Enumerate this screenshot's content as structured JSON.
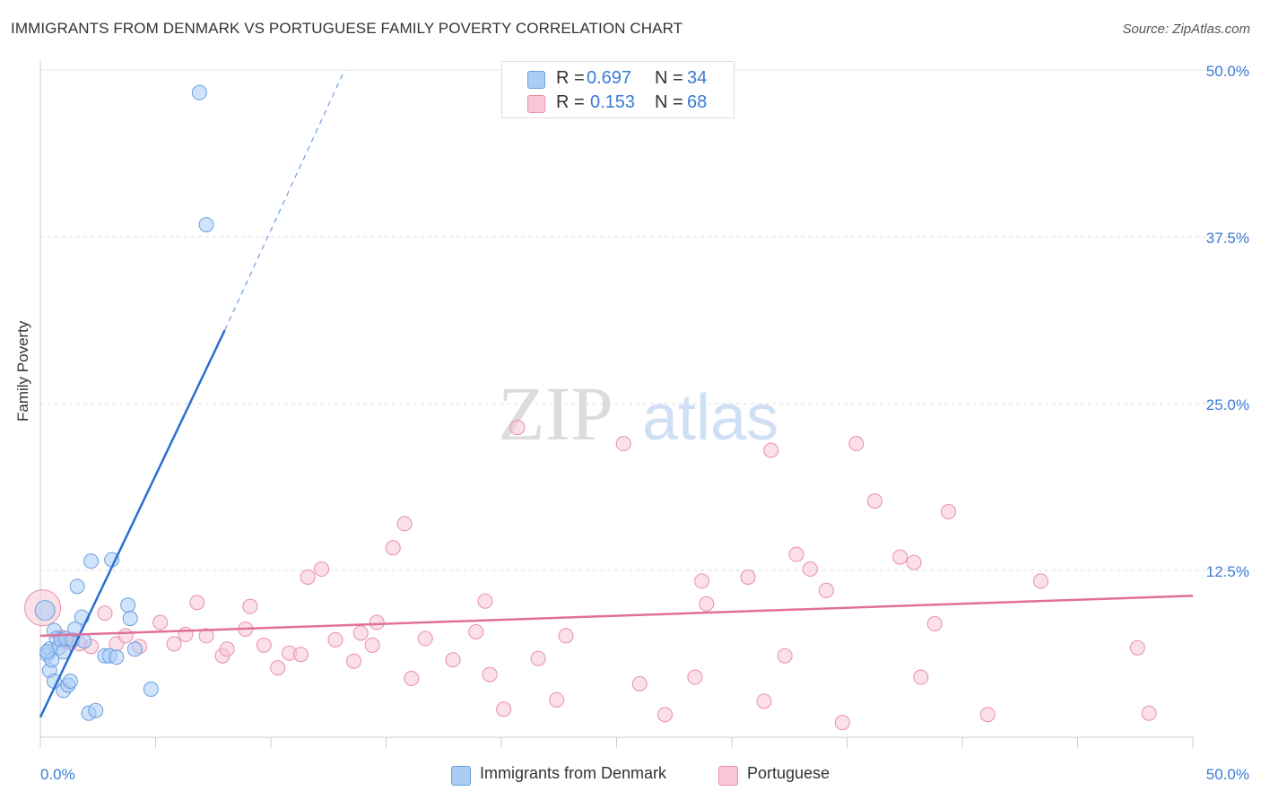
{
  "title": "IMMIGRANTS FROM DENMARK VS PORTUGUESE FAMILY POVERTY CORRELATION CHART",
  "source": "Source: ZipAtlas.com",
  "watermark": {
    "zip": "ZIP",
    "atlas": "atlas"
  },
  "legend": {
    "rows": [
      {
        "r_label": "R =",
        "r_value": "0.697",
        "n_label": "N =",
        "n_value": "34",
        "color": "#aaccf5",
        "border": "#6a9fe0"
      },
      {
        "r_label": "R =",
        "r_value": "0.153",
        "n_label": "N =",
        "n_value": "68",
        "color": "#f8c6d5",
        "border": "#e98fab"
      }
    ]
  },
  "bottom_legend": [
    {
      "label": "Immigrants from Denmark",
      "color": "#aaccf5",
      "border": "#6a9fe0"
    },
    {
      "label": "Portuguese",
      "color": "#f8c6d5",
      "border": "#e98fab"
    }
  ],
  "chart_data": {
    "type": "scatter",
    "title": "IMMIGRANTS FROM DENMARK VS PORTUGUESE FAMILY POVERTY CORRELATION CHART",
    "xlabel": "",
    "ylabel": "Family Poverty",
    "xlim": [
      0,
      50
    ],
    "ylim": [
      0,
      50
    ],
    "x_tick_labels": [
      "0.0%",
      "50.0%"
    ],
    "y_tick_labels": [
      "12.5%",
      "25.0%",
      "37.5%",
      "50.0%"
    ],
    "y_ticks": [
      12.5,
      25.0,
      37.5,
      50.0
    ],
    "colors": {
      "blue_fill": "#aaccf5",
      "blue_line": "#2a6fcf",
      "pink_fill": "#f8c6d5",
      "pink_line": "#e0709a",
      "axis_text": "#3a7bd5"
    },
    "series": [
      {
        "name": "Immigrants from Denmark",
        "r": 0.697,
        "n": 34,
        "points": [
          [
            0.2,
            9.5
          ],
          [
            0.3,
            6.2
          ],
          [
            0.4,
            6.6
          ],
          [
            0.4,
            5.0
          ],
          [
            0.5,
            5.8
          ],
          [
            0.6,
            4.2
          ],
          [
            0.6,
            8.0
          ],
          [
            0.7,
            7.4
          ],
          [
            0.8,
            6.7
          ],
          [
            0.9,
            7.3
          ],
          [
            1.0,
            3.5
          ],
          [
            1.0,
            6.4
          ],
          [
            1.1,
            7.4
          ],
          [
            1.2,
            3.9
          ],
          [
            1.3,
            4.2
          ],
          [
            1.4,
            7.3
          ],
          [
            1.5,
            8.1
          ],
          [
            1.6,
            11.3
          ],
          [
            1.8,
            9.0
          ],
          [
            1.9,
            7.2
          ],
          [
            2.1,
            1.8
          ],
          [
            2.2,
            13.2
          ],
          [
            2.4,
            2.0
          ],
          [
            2.8,
            6.1
          ],
          [
            3.1,
            13.3
          ],
          [
            3.0,
            6.1
          ],
          [
            3.3,
            6.0
          ],
          [
            3.8,
            9.9
          ],
          [
            3.9,
            8.9
          ],
          [
            4.1,
            6.6
          ],
          [
            4.8,
            3.6
          ],
          [
            6.9,
            48.3
          ],
          [
            7.2,
            38.4
          ],
          [
            0.3,
            6.4
          ]
        ],
        "trend": {
          "x0": 0,
          "y0": 1.5,
          "x1": 8.0,
          "y1": 30.5,
          "dash_x1": 13.2,
          "dash_y1": 50.0
        }
      },
      {
        "name": "Portuguese",
        "r": 0.153,
        "n": 68,
        "points": [
          [
            0.1,
            9.7
          ],
          [
            0.9,
            7.5
          ],
          [
            1.1,
            7.2
          ],
          [
            1.3,
            7.1
          ],
          [
            1.7,
            7.0
          ],
          [
            2.2,
            6.8
          ],
          [
            2.8,
            9.3
          ],
          [
            3.3,
            7.0
          ],
          [
            3.7,
            7.6
          ],
          [
            4.3,
            6.8
          ],
          [
            5.2,
            8.6
          ],
          [
            5.8,
            7.0
          ],
          [
            6.3,
            7.7
          ],
          [
            6.8,
            10.1
          ],
          [
            7.2,
            7.6
          ],
          [
            7.9,
            6.1
          ],
          [
            8.1,
            6.6
          ],
          [
            8.9,
            8.1
          ],
          [
            9.1,
            9.8
          ],
          [
            9.7,
            6.9
          ],
          [
            10.3,
            5.2
          ],
          [
            10.8,
            6.3
          ],
          [
            11.3,
            6.2
          ],
          [
            11.6,
            12.0
          ],
          [
            12.2,
            12.6
          ],
          [
            12.8,
            7.3
          ],
          [
            13.6,
            5.7
          ],
          [
            13.9,
            7.8
          ],
          [
            14.4,
            6.9
          ],
          [
            14.6,
            8.6
          ],
          [
            15.3,
            14.2
          ],
          [
            15.8,
            16.0
          ],
          [
            16.1,
            4.4
          ],
          [
            16.7,
            7.4
          ],
          [
            17.9,
            5.8
          ],
          [
            18.9,
            7.9
          ],
          [
            19.3,
            10.2
          ],
          [
            19.5,
            4.7
          ],
          [
            20.1,
            2.1
          ],
          [
            20.7,
            23.2
          ],
          [
            21.6,
            5.9
          ],
          [
            22.4,
            2.8
          ],
          [
            22.8,
            7.6
          ],
          [
            25.3,
            22.0
          ],
          [
            26.0,
            4.0
          ],
          [
            27.1,
            1.7
          ],
          [
            28.4,
            4.5
          ],
          [
            28.7,
            11.7
          ],
          [
            28.9,
            10.0
          ],
          [
            30.7,
            12.0
          ],
          [
            31.4,
            2.7
          ],
          [
            31.7,
            21.5
          ],
          [
            32.3,
            6.1
          ],
          [
            32.8,
            13.7
          ],
          [
            33.4,
            12.6
          ],
          [
            34.1,
            11.0
          ],
          [
            34.8,
            1.1
          ],
          [
            35.4,
            22.0
          ],
          [
            36.2,
            17.7
          ],
          [
            37.3,
            13.5
          ],
          [
            37.9,
            13.1
          ],
          [
            38.2,
            4.5
          ],
          [
            38.8,
            8.5
          ],
          [
            39.4,
            16.9
          ],
          [
            41.1,
            1.7
          ],
          [
            43.4,
            11.7
          ],
          [
            47.6,
            6.7
          ],
          [
            48.1,
            1.8
          ]
        ],
        "trend": {
          "x0": 0,
          "y0": 7.6,
          "x1": 50.0,
          "y1": 10.6
        }
      }
    ]
  }
}
